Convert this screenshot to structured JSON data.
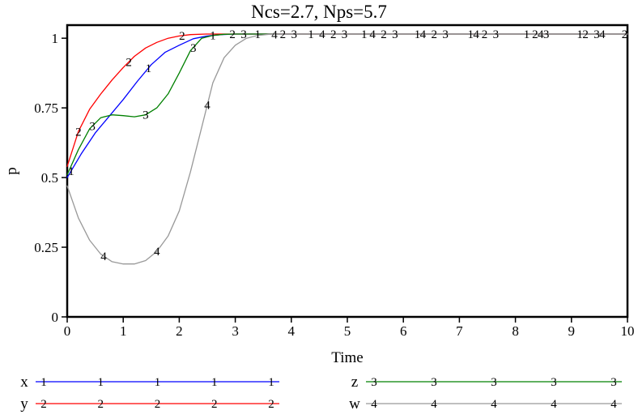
{
  "chart_data": {
    "type": "line",
    "title": "Ncs=2.7, Nps=5.7",
    "xlabel": "Time",
    "ylabel": "p",
    "xlim": [
      0,
      10
    ],
    "ylim": [
      0,
      1.047
    ],
    "xticks": [
      0,
      1,
      2,
      3,
      4,
      5,
      6,
      7,
      8,
      9,
      10
    ],
    "yticks": [
      0,
      0.25,
      0.5,
      0.75,
      1
    ],
    "ytick_labels": [
      "0",
      "0.25",
      "0.5",
      "0.75",
      "1"
    ],
    "grid": false,
    "legend_position": "bottom",
    "frame_color": "#000000",
    "series": [
      {
        "name": "x",
        "marker": "1",
        "color": "#0000ff",
        "points": [
          [
            0,
            0.5
          ],
          [
            0.25,
            0.585
          ],
          [
            0.5,
            0.66
          ],
          [
            0.75,
            0.72
          ],
          [
            1,
            0.78
          ],
          [
            1.25,
            0.845
          ],
          [
            1.5,
            0.905
          ],
          [
            1.75,
            0.95
          ],
          [
            2,
            0.975
          ],
          [
            2.25,
            0.998
          ],
          [
            2.5,
            1.008
          ],
          [
            2.75,
            1.013
          ],
          [
            3,
            1.015
          ],
          [
            4,
            1.015
          ],
          [
            5,
            1.015
          ],
          [
            6,
            1.015
          ],
          [
            7,
            1.015
          ],
          [
            8,
            1.015
          ],
          [
            9,
            1.015
          ],
          [
            10,
            1.015
          ]
        ],
        "marker_times": [
          0.07,
          1.45,
          2.6,
          3.4,
          4.35,
          5.3,
          6.25,
          7.2,
          8.2,
          9.15
        ]
      },
      {
        "name": "y",
        "marker": "2",
        "color": "#ff0000",
        "points": [
          [
            0,
            0.54
          ],
          [
            0.2,
            0.665
          ],
          [
            0.4,
            0.745
          ],
          [
            0.6,
            0.8
          ],
          [
            0.8,
            0.85
          ],
          [
            1,
            0.895
          ],
          [
            1.2,
            0.935
          ],
          [
            1.4,
            0.965
          ],
          [
            1.6,
            0.985
          ],
          [
            1.8,
            1.0
          ],
          [
            2,
            1.008
          ],
          [
            2.2,
            1.013
          ],
          [
            2.5,
            1.015
          ],
          [
            3,
            1.015
          ],
          [
            4,
            1.015
          ],
          [
            5,
            1.015
          ],
          [
            6,
            1.015
          ],
          [
            7,
            1.015
          ],
          [
            8,
            1.015
          ],
          [
            9,
            1.015
          ],
          [
            10,
            1.015
          ]
        ],
        "marker_times": [
          0.2,
          1.1,
          2.05,
          2.95,
          3.85,
          4.75,
          5.65,
          6.55,
          7.45,
          8.35,
          9.25,
          9.95
        ]
      },
      {
        "name": "z",
        "marker": "3",
        "color": "#008000",
        "points": [
          [
            0,
            0.51
          ],
          [
            0.2,
            0.6
          ],
          [
            0.4,
            0.675
          ],
          [
            0.6,
            0.715
          ],
          [
            0.8,
            0.725
          ],
          [
            1,
            0.722
          ],
          [
            1.2,
            0.718
          ],
          [
            1.4,
            0.725
          ],
          [
            1.6,
            0.75
          ],
          [
            1.8,
            0.8
          ],
          [
            2,
            0.875
          ],
          [
            2.2,
            0.955
          ],
          [
            2.4,
            1.0
          ],
          [
            2.6,
            1.01
          ],
          [
            2.8,
            1.014
          ],
          [
            3,
            1.015
          ],
          [
            4,
            1.015
          ],
          [
            5,
            1.015
          ],
          [
            6,
            1.015
          ],
          [
            7,
            1.015
          ],
          [
            8,
            1.015
          ],
          [
            9,
            1.015
          ],
          [
            10,
            1.015
          ]
        ],
        "marker_times": [
          0.45,
          1.4,
          2.25,
          3.15,
          4.05,
          4.95,
          5.85,
          6.75,
          7.65,
          8.55,
          9.45
        ]
      },
      {
        "name": "w",
        "marker": "4",
        "color": "#999999",
        "points": [
          [
            0,
            0.47
          ],
          [
            0.2,
            0.355
          ],
          [
            0.4,
            0.275
          ],
          [
            0.6,
            0.225
          ],
          [
            0.8,
            0.198
          ],
          [
            1,
            0.19
          ],
          [
            1.2,
            0.19
          ],
          [
            1.4,
            0.202
          ],
          [
            1.6,
            0.235
          ],
          [
            1.8,
            0.29
          ],
          [
            2,
            0.38
          ],
          [
            2.2,
            0.52
          ],
          [
            2.4,
            0.68
          ],
          [
            2.6,
            0.84
          ],
          [
            2.8,
            0.93
          ],
          [
            3,
            0.975
          ],
          [
            3.2,
            1.0
          ],
          [
            3.4,
            1.01
          ],
          [
            3.6,
            1.014
          ],
          [
            4,
            1.015
          ],
          [
            5,
            1.015
          ],
          [
            6,
            1.015
          ],
          [
            7,
            1.015
          ],
          [
            8,
            1.015
          ],
          [
            9,
            1.015
          ],
          [
            10,
            1.015
          ]
        ],
        "marker_times": [
          0.65,
          1.6,
          2.5,
          3.7,
          4.55,
          5.45,
          6.35,
          7.3,
          8.45,
          9.55
        ]
      }
    ]
  }
}
